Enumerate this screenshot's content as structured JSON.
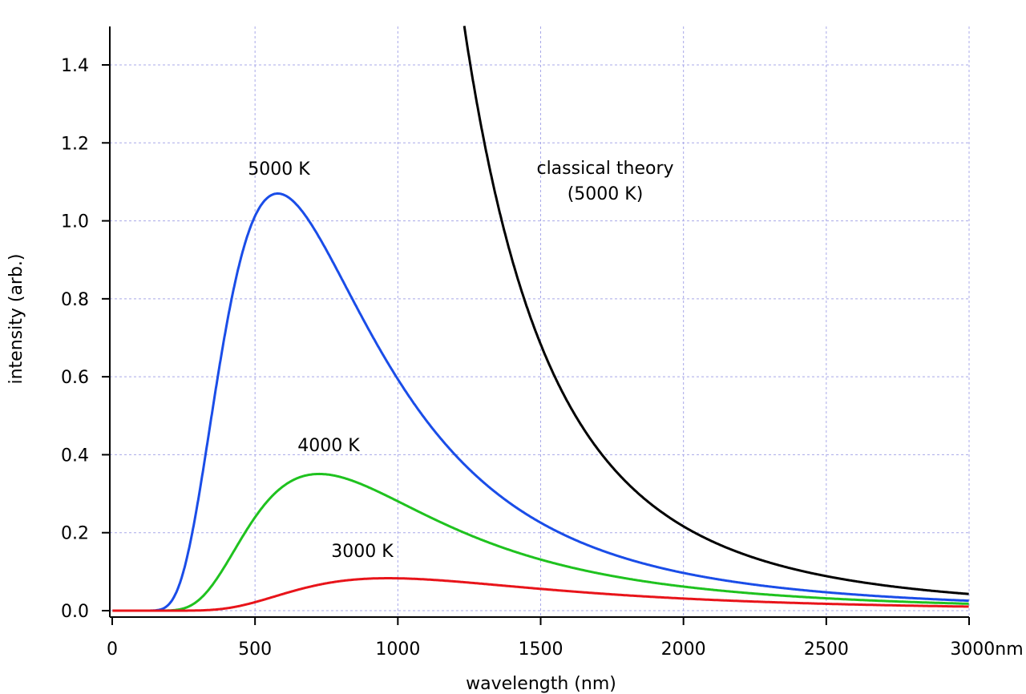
{
  "chart_data": {
    "type": "line",
    "title": "",
    "xlabel": "wavelength (nm)",
    "ylabel": "intensity (arb.)",
    "xlim": [
      0,
      3000
    ],
    "ylim": [
      0,
      1.5
    ],
    "grid": true,
    "x_ticks": [
      "0",
      "500",
      "1000",
      "1500",
      "2000",
      "2500",
      "3000nm"
    ],
    "x_tick_values": [
      0,
      500,
      1000,
      1500,
      2000,
      2500,
      3000
    ],
    "y_ticks": [
      "0.0",
      "0.2",
      "0.4",
      "0.6",
      "0.8",
      "1.0",
      "1.2",
      "1.4"
    ],
    "y_tick_values": [
      0,
      0.2,
      0.4,
      0.6,
      0.8,
      1.0,
      1.2,
      1.4
    ],
    "sample_x": [
      250,
      500,
      1000,
      1500,
      2000,
      2500,
      3000
    ],
    "series": [
      {
        "name": "5000 K",
        "label": "5000 K",
        "temperature": 5000,
        "model": "planck",
        "color": "#1a4de8",
        "peak": {
          "x": 580,
          "y": 1.07
        },
        "values": [
          0.103,
          1.015,
          0.596,
          0.227,
          0.097,
          0.047,
          0.026
        ]
      },
      {
        "name": "4000 K",
        "label": "4000 K",
        "temperature": 4000,
        "model": "planck",
        "color": "#1fc21f",
        "peak": {
          "x": 725,
          "y": 0.35
        },
        "values": [
          0.006,
          0.25,
          0.28,
          0.13,
          0.062,
          0.033,
          0.019
        ]
      },
      {
        "name": "3000 K",
        "label": "3000 K",
        "temperature": 3000,
        "model": "planck",
        "color": "#e8141a",
        "peak": {
          "x": 966,
          "y": 0.083
        },
        "values": [
          0.0,
          0.015,
          0.083,
          0.056,
          0.031,
          0.018,
          0.011
        ]
      },
      {
        "name": "classical theory (5000 K)",
        "label_line1": "classical theory",
        "label_line2": "(5000 K)",
        "temperature": 5000,
        "model": "rayleigh-jeans",
        "color": "#000000",
        "values": [
          null,
          null,
          null,
          0.687,
          0.217,
          0.089,
          0.043
        ]
      }
    ]
  }
}
